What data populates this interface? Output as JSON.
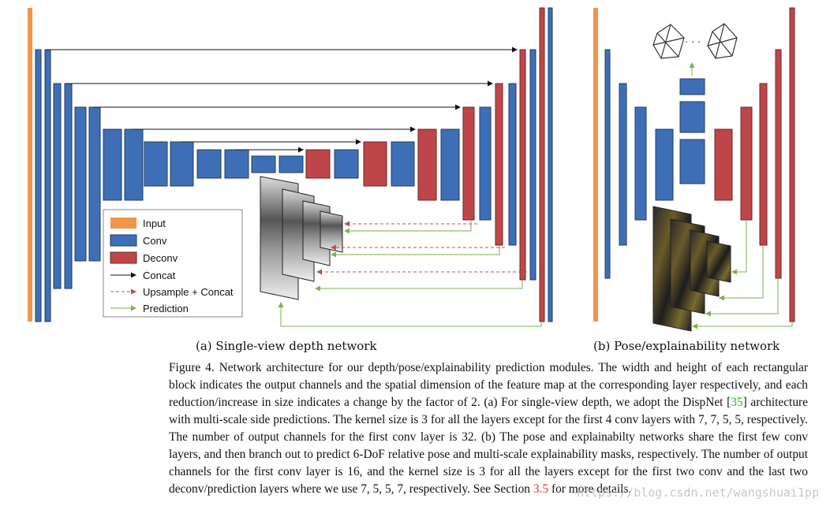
{
  "figure": {
    "colors": {
      "input": "#f0954a",
      "conv": "#3e6fb6",
      "deconv": "#bf4648",
      "concat": "#111111",
      "upsample": "#c0504d",
      "prediction": "#7bb24c"
    },
    "legend": {
      "input": "Input",
      "conv": "Conv",
      "deconv": "Deconv",
      "concat": "Concat",
      "upsample": "Upsample + Concat",
      "prediction": "Prediction"
    },
    "pose_dots": "· · ·"
  },
  "subcaptions": {
    "a": "(a) Single-view depth network",
    "b": "(b) Pose/explainability network"
  },
  "caption": {
    "p1": "Figure 4. Network architecture for our depth/pose/explainability prediction modules. The width and height of each rectangular block indicates the output channels and the spatial dimension of the feature map at the corresponding layer respectively, and each reduction/increase in size indicates a change by the factor of 2. (a) For single-view depth, we adopt the DispNet [",
    "ref": "35",
    "p2": "] architecture with multi-scale side predictions. The kernel size is 3 for all the layers except for the first 4 conv layers with 7, 7, 5, 5, respectively. The number of output channels for the first conv layer is 32. (b) The pose and explainabilty networks share the first few conv layers, and then branch out to predict 6-DoF relative pose and multi-scale explainability masks, respectively. The number of output channels for the first conv layer is 16, and the kernel size is 3 for all the layers except for the first two conv and the last two deconv/prediction layers where we use 7, 5, 5, 7, respectively. See Section ",
    "section": "3.5",
    "p3": " for more details."
  },
  "watermark": "https://blog.csdn.net/wangshuai1pp"
}
